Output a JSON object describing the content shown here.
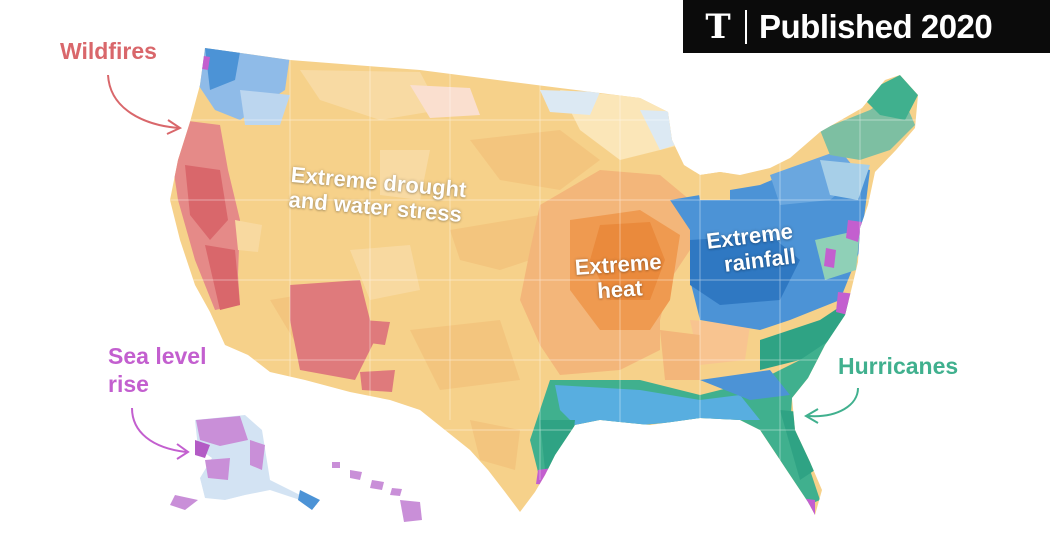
{
  "badge": {
    "logo_glyph": "T",
    "text": "Published 2020"
  },
  "labels": {
    "wildfires": "Wildfires",
    "sea_level_line1": "Sea level",
    "sea_level_line2": "rise",
    "drought_line1": "Extreme drought",
    "drought_line2": "and water stress",
    "heat_line1": "Extreme",
    "heat_line2": "heat",
    "rainfall_line1": "Extreme",
    "rainfall_line2": "rainfall",
    "hurricanes": "Hurricanes"
  },
  "colors": {
    "wildfires": "#d9676b",
    "sea_level": "#c35fcf",
    "drought": "#f6d18a",
    "heat": "#ef9a50",
    "rainfall": "#4c93d6",
    "hurricanes": "#40b08e"
  },
  "icons": [
    "nyt-logo-icon",
    "arrow-icon"
  ]
}
